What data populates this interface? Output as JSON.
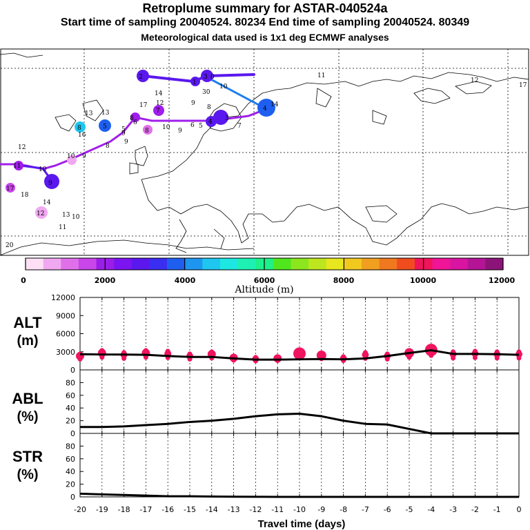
{
  "header": {
    "title": "Retroplume summary for ASTAR-040524a",
    "line2": "Start time of sampling 20040524. 80234     End time of sampling 20040524. 80349",
    "line3": "Meteorological data used is 1x1 deg ECMWF analyses"
  },
  "colorbar": {
    "colors": [
      "#fde0f5",
      "#f0a8f0",
      "#e070ea",
      "#c846ea",
      "#9a1ee8",
      "#7b14f0",
      "#5a18ee",
      "#3a2ef0",
      "#1e5ff0",
      "#1e96f0",
      "#1ec6f0",
      "#1ee6e0",
      "#1ef0b4",
      "#1ef08a",
      "#50e61e",
      "#8ce61e",
      "#bee61e",
      "#e8e61e",
      "#f0c81e",
      "#f0a01e",
      "#f0781e",
      "#f04c1e",
      "#f0145a",
      "#f01496",
      "#d814a0",
      "#b41496",
      "#8c1478"
    ],
    "tick_labels": [
      "0",
      "2000",
      "4000",
      "6000",
      "8000",
      "10000",
      "12000"
    ],
    "label": "Altitude (m)"
  },
  "map_labels": [
    {
      "t": "2",
      "c": "#5a18ee"
    },
    {
      "t": "1",
      "c": "#5a18ee"
    },
    {
      "t": "3",
      "c": "#5a18ee"
    },
    {
      "t": "0",
      "c": "#5a18ee"
    },
    {
      "t": "14",
      "c": "#c846ea"
    },
    {
      "t": "30",
      "c": "#c846ea"
    },
    {
      "t": "10",
      "c": "#c846ea"
    },
    {
      "t": "11",
      "c": "#c846ea"
    },
    {
      "t": "12",
      "c": "#c846ea"
    },
    {
      "t": "17",
      "c": "#c846ea"
    },
    {
      "t": "7",
      "c": "#c846ea"
    },
    {
      "t": "9",
      "c": "#c846ea"
    },
    {
      "t": "8",
      "c": "#c846ea"
    },
    {
      "t": "13",
      "c": "#c846ea"
    },
    {
      "t": "13",
      "c": "#c846ea"
    },
    {
      "t": "8",
      "c": "#1ec6f0"
    },
    {
      "t": "16",
      "c": "#c846ea"
    },
    {
      "t": "5",
      "c": "#1e5ff0"
    },
    {
      "t": "8",
      "c": "#c846ea"
    },
    {
      "t": "6",
      "c": "#5a18ee"
    },
    {
      "t": "9",
      "c": "#c846ea"
    },
    {
      "t": "5",
      "c": "#c846ea"
    },
    {
      "t": "8",
      "c": "#c846ea"
    },
    {
      "t": "9",
      "c": "#c846ea"
    },
    {
      "t": "10",
      "c": "#c846ea"
    },
    {
      "t": "9",
      "c": "#c846ea"
    },
    {
      "t": "6",
      "c": "#5a18ee"
    },
    {
      "t": "5",
      "c": "#5a18ee"
    },
    {
      "t": "4",
      "c": "#5a18ee"
    },
    {
      "t": "3",
      "c": "#5a18ee"
    },
    {
      "t": "7",
      "c": "#c846ea"
    },
    {
      "t": "4",
      "c": "#1e5ff0"
    },
    {
      "t": "14",
      "c": "#c846ea"
    },
    {
      "t": "8",
      "c": "#c846ea"
    },
    {
      "t": "12",
      "c": "#c846ea"
    },
    {
      "t": "10",
      "c": "#c846ea"
    },
    {
      "t": "9",
      "c": "#c846ea"
    },
    {
      "t": "11",
      "c": "#c846ea"
    },
    {
      "t": "10",
      "c": "#c846ea"
    },
    {
      "t": "9",
      "c": "#5a18ee"
    },
    {
      "t": "17",
      "c": "#c846ea"
    },
    {
      "t": "18",
      "c": "#c846ea"
    },
    {
      "t": "14",
      "c": "#c846ea"
    },
    {
      "t": "12",
      "c": "#c846ea"
    },
    {
      "t": "13",
      "c": "#c846ea"
    },
    {
      "t": "10",
      "c": "#c846ea"
    },
    {
      "t": "11",
      "c": "#c846ea"
    },
    {
      "t": "20",
      "c": "#c846ea"
    },
    {
      "t": "11",
      "c": "#c846ea"
    },
    {
      "t": "12",
      "c": "#c846ea"
    },
    {
      "t": "17",
      "c": "#c846ea"
    }
  ],
  "chart_data": [
    {
      "type": "line",
      "panel": "ALT",
      "ylabel": "ALT\n(m)",
      "ylim": [
        0,
        12000
      ],
      "yticks": [
        "0",
        "3000",
        "6000",
        "9000",
        "12000"
      ],
      "xlim": [
        -20,
        0
      ],
      "x": [
        -20,
        -19,
        -18,
        -17,
        -16,
        -15,
        -14,
        -13,
        -12,
        -11,
        -10,
        -9,
        -8,
        -7,
        -6,
        -5,
        -4,
        -3,
        -2,
        -1,
        0
      ],
      "values": [
        2600,
        2550,
        2550,
        2500,
        2300,
        2150,
        2150,
        1900,
        1700,
        1700,
        1750,
        1800,
        1750,
        1900,
        2300,
        2800,
        3250,
        2650,
        2650,
        2600,
        2500
      ],
      "dots": [
        2300,
        2800,
        2500,
        2800,
        2700,
        2300,
        2600,
        2000,
        1800,
        1900,
        2700,
        2400,
        1900,
        2500,
        2300,
        2800,
        3300,
        2600,
        2700,
        2600,
        2600
      ],
      "dot_color": "#f01460"
    },
    {
      "type": "line",
      "panel": "ABL",
      "ylabel": "ABL\n(%)",
      "ylim": [
        0,
        100
      ],
      "yticks": [
        "0",
        "20",
        "40",
        "60",
        "80"
      ],
      "xlim": [
        -20,
        0
      ],
      "x": [
        -20,
        -19,
        -18,
        -17,
        -16,
        -15,
        -14,
        -13,
        -12,
        -11,
        -10,
        -9,
        -8,
        -7,
        -6,
        -5,
        -4,
        -3,
        -2,
        -1,
        0
      ],
      "values": [
        10,
        10,
        11,
        13,
        15,
        18,
        20,
        23,
        27,
        30,
        31,
        27,
        20,
        15,
        14,
        7,
        0,
        0,
        0,
        0,
        0
      ]
    },
    {
      "type": "line",
      "panel": "STR",
      "ylabel": "STR\n(%)",
      "ylim": [
        0,
        100
      ],
      "yticks": [
        "0",
        "20",
        "40",
        "60",
        "80"
      ],
      "xlim": [
        -20,
        0
      ],
      "xticks": [
        "-20",
        "-19",
        "-18",
        "-17",
        "-16",
        "-15",
        "-14",
        "-13",
        "-12",
        "-11",
        "-10",
        "-9",
        "-8",
        "-7",
        "-6",
        "-5",
        "-4",
        "-3",
        "-2",
        "-1",
        "0"
      ],
      "xlabel": "Travel time (days)",
      "x": [
        -20,
        -19,
        -18,
        -17,
        -16,
        -15,
        -14,
        -13,
        -12,
        -11,
        -10,
        -9,
        -8,
        -7,
        -6,
        -5,
        -4,
        -3,
        -2,
        -1,
        0
      ],
      "values": [
        5,
        4,
        3,
        2,
        1,
        1,
        0.5,
        0.3,
        0.2,
        0,
        0,
        0,
        0,
        0,
        0,
        0,
        0,
        0,
        0,
        0,
        0
      ]
    }
  ]
}
